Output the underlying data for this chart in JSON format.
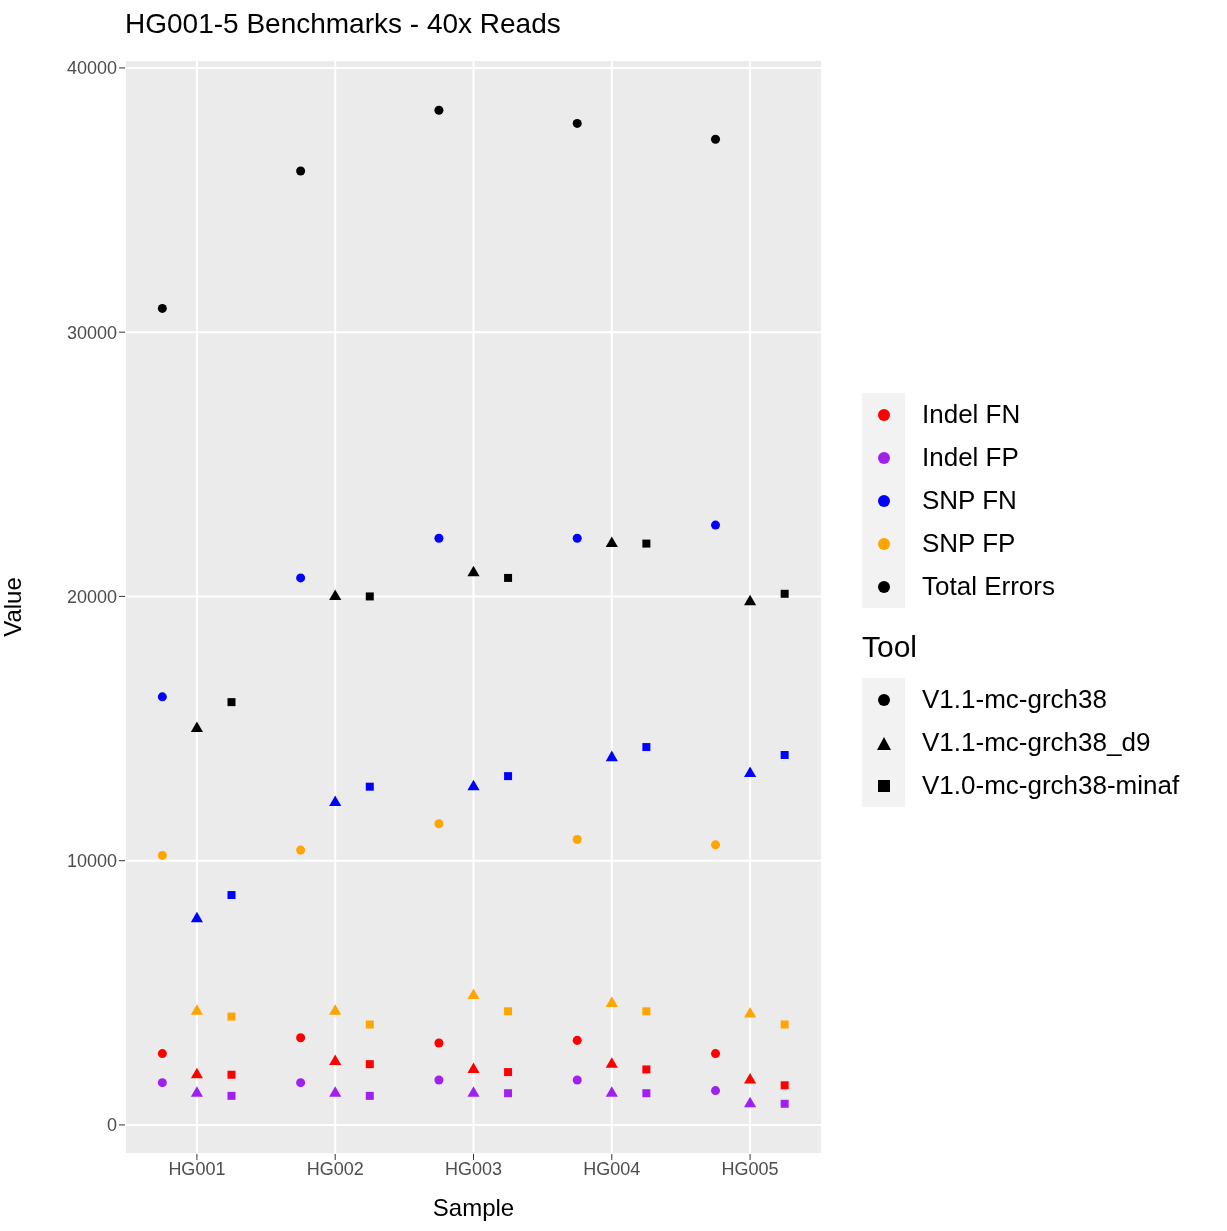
{
  "chart_data": {
    "type": "scatter",
    "title": "HG001-5 Benchmarks - 40x Reads",
    "xlabel": "Sample",
    "ylabel": "Value",
    "categories": [
      "HG001",
      "HG002",
      "HG003",
      "HG004",
      "HG005"
    ],
    "ylim": [
      -1100,
      40300
    ],
    "yticks": [
      0,
      10000,
      20000,
      30000,
      40000
    ],
    "grid": true,
    "legend": "right",
    "legend_title": "Tool",
    "annotations": [
      "V1.1-mc-grch38",
      "V1.1-mc-grch38_d9",
      "V1.0-mc-grch38-minaf"
    ],
    "series": [
      {
        "name": "Indel FN",
        "color": "#ff0000",
        "marker": "circle",
        "values": [
          2700,
          3300,
          3100,
          3200,
          2700
        ]
      },
      {
        "color": "#ff0000",
        "marker": "triangle",
        "values": [
          1900,
          2400,
          2100,
          2300,
          1700
        ]
      },
      {
        "color": "#ff0000",
        "marker": "square",
        "values": [
          1900,
          2300,
          2000,
          2100,
          1500
        ]
      },
      {
        "name": "Indel FP",
        "color": "#a020f0",
        "marker": "circle",
        "values": [
          1600,
          1600,
          1700,
          1700,
          1300
        ]
      },
      {
        "color": "#a020f0",
        "marker": "triangle",
        "values": [
          1200,
          1200,
          1200,
          1200,
          800
        ]
      },
      {
        "color": "#a020f0",
        "marker": "square",
        "values": [
          1100,
          1100,
          1200,
          1200,
          800
        ]
      },
      {
        "name": "SNP FN",
        "color": "#0000ff",
        "marker": "circle",
        "values": [
          16200,
          20700,
          22200,
          22200,
          22700
        ]
      },
      {
        "color": "#0000ff",
        "marker": "triangle",
        "values": [
          7800,
          12200,
          12800,
          13900,
          13300
        ]
      },
      {
        "color": "#0000ff",
        "marker": "square",
        "values": [
          8700,
          12800,
          13200,
          14300,
          14000
        ]
      },
      {
        "name": "SNP FP",
        "color": "#ffa500",
        "marker": "circle",
        "values": [
          10200,
          10400,
          11400,
          10800,
          10600
        ]
      },
      {
        "color": "#ffa500",
        "marker": "triangle",
        "values": [
          4300,
          4300,
          4900,
          4600,
          4200
        ]
      },
      {
        "color": "#ffa500",
        "marker": "square",
        "values": [
          4100,
          3800,
          4300,
          4300,
          3800
        ]
      },
      {
        "name": "Total Errors",
        "color": "#000000",
        "marker": "circle",
        "values": [
          30900,
          36100,
          38400,
          37900,
          37300
        ]
      },
      {
        "color": "#000000",
        "marker": "triangle",
        "values": [
          15000,
          20000,
          20900,
          22000,
          19800
        ]
      },
      {
        "color": "#000000",
        "marker": "square",
        "values": [
          16000,
          20000,
          20700,
          22000,
          20100
        ]
      }
    ]
  }
}
